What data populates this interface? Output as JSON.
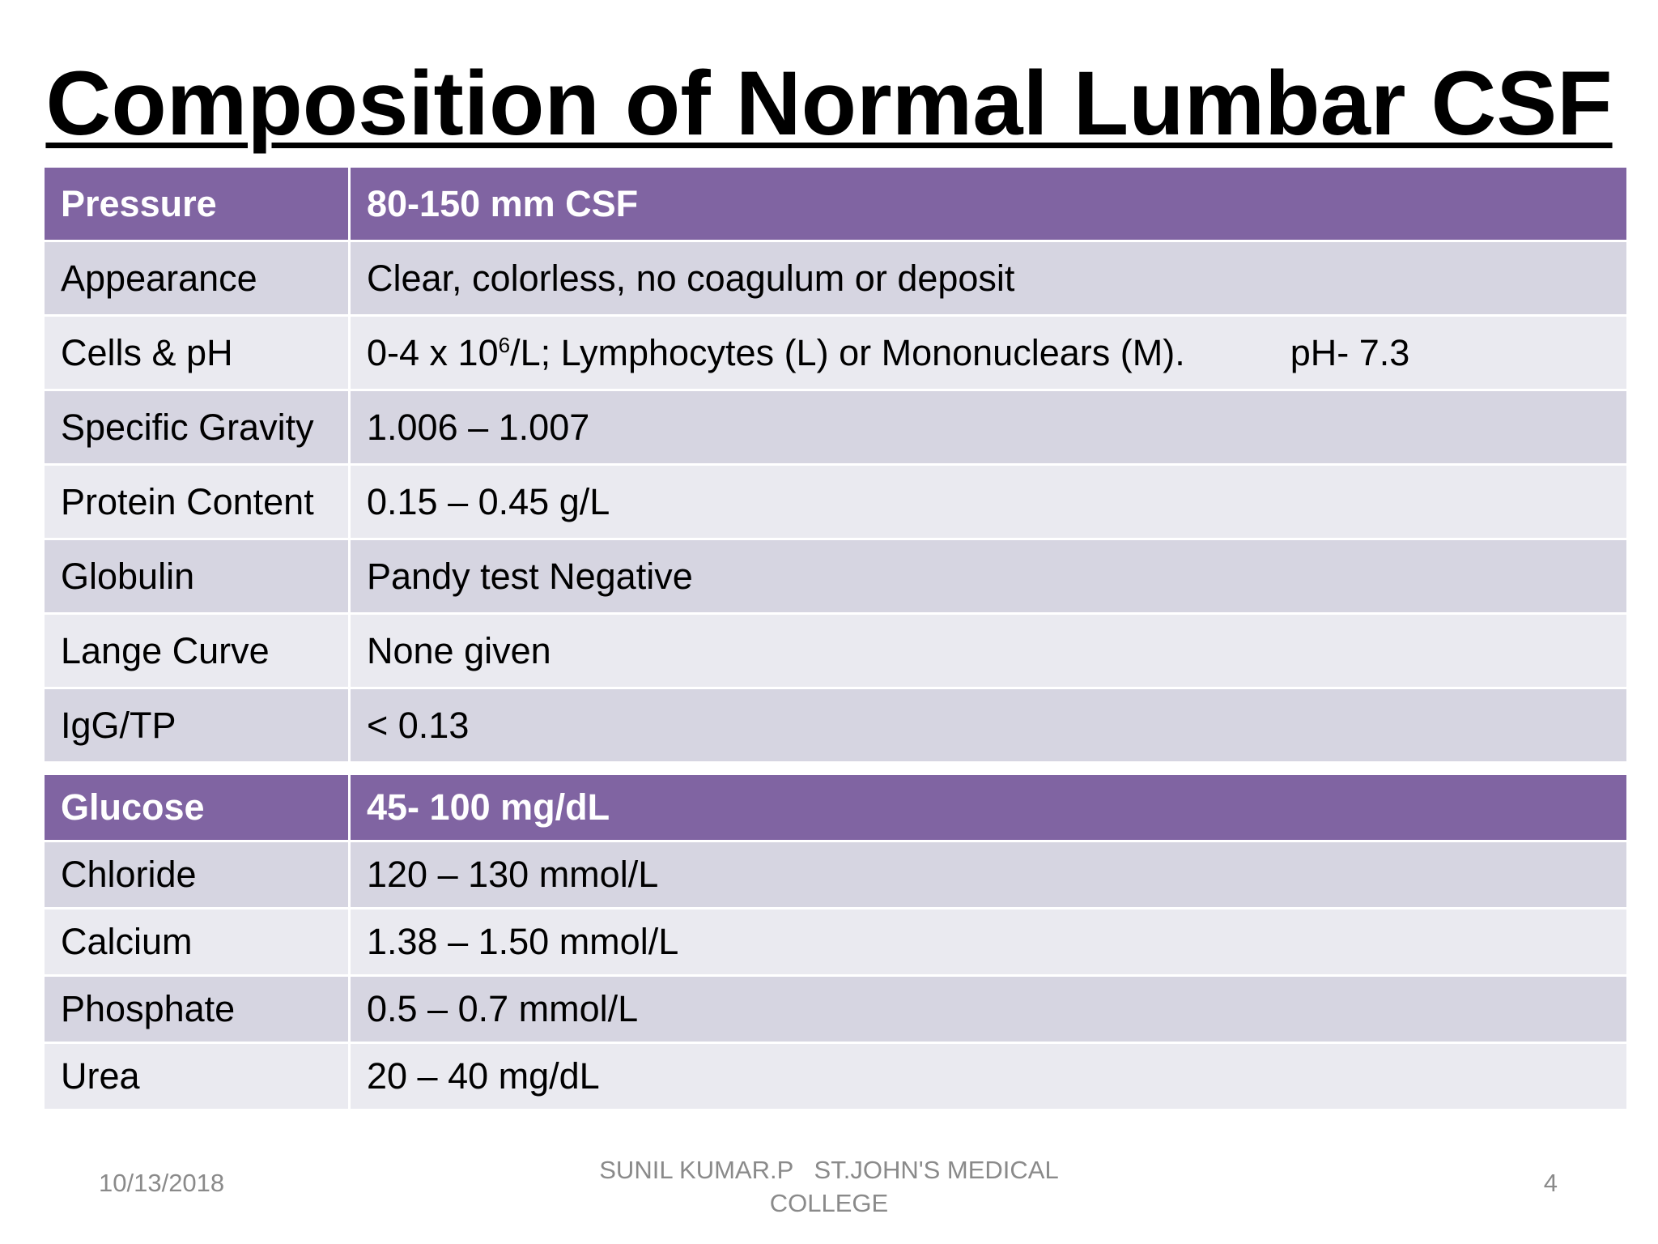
{
  "title": "Composition of Normal Lumbar CSF",
  "table_top": {
    "header": {
      "label": "Pressure",
      "value": "80-150 mm CSF"
    },
    "rows": [
      {
        "label": "Appearance",
        "value": "Clear, colorless, no coagulum or deposit"
      },
      {
        "label": "Cells & pH",
        "value_prefix": "0-4 x 10",
        "value_sup": "6",
        "value_suffix": "/L; Lymphocytes (L) or Mononuclears (M).",
        "ph": "pH- 7.3"
      },
      {
        "label": "Specific Gravity",
        "value": "1.006 – 1.007"
      },
      {
        "label": "Protein Content",
        "value": "0.15 – 0.45 g/L"
      },
      {
        "label": "Globulin",
        "value": "Pandy test Negative"
      },
      {
        "label": "Lange Curve",
        "value": "None given"
      },
      {
        "label": "IgG/TP",
        "value": "< 0.13"
      }
    ]
  },
  "table_bottom": {
    "header": {
      "label": "Glucose",
      "value": "45- 100 mg/dL"
    },
    "rows": [
      {
        "label": "Chloride",
        "value": "120 – 130 mmol/L"
      },
      {
        "label": "Calcium",
        "value": "1.38 – 1.50 mmol/L"
      },
      {
        "label": "Phosphate",
        "value": "0.5 – 0.7 mmol/L"
      },
      {
        "label": "Urea",
        "value": "20 – 40 mg/dL"
      }
    ]
  },
  "footer": {
    "date": "10/13/2018",
    "author_line1": "SUNIL KUMAR.P   ST.JOHN'S MEDICAL",
    "author_line2": "COLLEGE",
    "page_number": "4"
  },
  "colors": {
    "header_purple": "#8064a2",
    "row_dark": "#d6d5e1",
    "row_light": "#eaeaf0",
    "footer_gray": "#8a8a8a"
  }
}
